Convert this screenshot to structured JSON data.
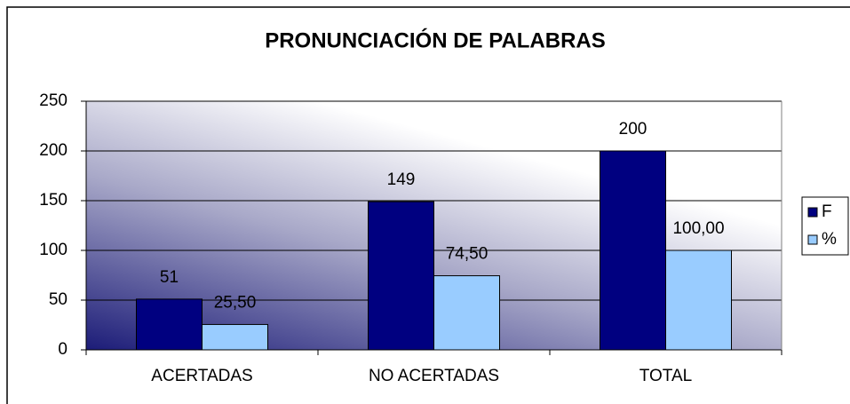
{
  "chart_data": {
    "type": "bar",
    "title": "PRONUNCIACIÓN DE PALABRAS",
    "categories": [
      "ACERTADAS",
      "NO ACERTADAS",
      "TOTAL"
    ],
    "series": [
      {
        "name": "F",
        "color": "#000080",
        "values": [
          51,
          149,
          200
        ]
      },
      {
        "name": "%",
        "color": "#99ccff",
        "values": [
          25.5,
          74.5,
          100
        ],
        "value_labels": [
          "25,50",
          "74,50",
          "100,00"
        ]
      }
    ],
    "ylim": [
      0,
      250
    ],
    "yticks": [
      0,
      50,
      100,
      150,
      200,
      250
    ],
    "grid": true,
    "legend": "right"
  }
}
